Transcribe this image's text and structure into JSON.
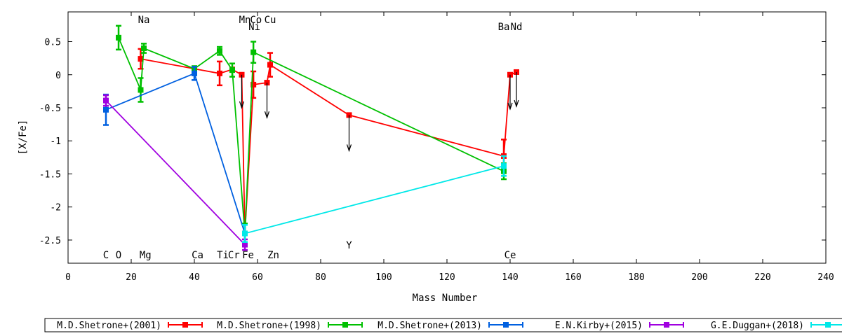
{
  "chart_data": {
    "type": "line",
    "xlabel": "Mass Number",
    "ylabel": "[X/Fe]",
    "xlim": [
      0,
      240
    ],
    "ylim": [
      -2.85,
      0.95
    ],
    "xticks": [
      0,
      20,
      40,
      60,
      80,
      100,
      120,
      140,
      160,
      180,
      200,
      220,
      240
    ],
    "yticks": [
      0.5,
      0,
      -0.5,
      -1,
      -1.5,
      -2,
      -2.5
    ],
    "ytick_labels": [
      "0.5",
      "0",
      "-0.5",
      "-1",
      "-1.5",
      "-2",
      "-2.5"
    ],
    "grid": false,
    "legend_position": "bottom",
    "element_labels": [
      {
        "text": "Na",
        "x": 24,
        "row": "top"
      },
      {
        "text": "Mn",
        "x": 56,
        "row": "top"
      },
      {
        "text": "Co",
        "x": 59.5,
        "row": "top"
      },
      {
        "text": "Cu",
        "x": 64,
        "row": "top"
      },
      {
        "text": "Ni",
        "x": 59,
        "row": "top2"
      },
      {
        "text": "Ba",
        "x": 138,
        "row": "top2"
      },
      {
        "text": "Nd",
        "x": 142,
        "row": "top2"
      },
      {
        "text": "Y",
        "x": 89,
        "row": "mid"
      },
      {
        "text": "C",
        "x": 12,
        "row": "bottom"
      },
      {
        "text": "O",
        "x": 16,
        "row": "bottom"
      },
      {
        "text": "Mg",
        "x": 24.5,
        "row": "bottom"
      },
      {
        "text": "Ca",
        "x": 41,
        "row": "bottom"
      },
      {
        "text": "Ti",
        "x": 49,
        "row": "bottom"
      },
      {
        "text": "Cr",
        "x": 52.5,
        "row": "bottom"
      },
      {
        "text": "Fe",
        "x": 57,
        "row": "bottom"
      },
      {
        "text": "Zn",
        "x": 65,
        "row": "bottom"
      },
      {
        "text": "Ce",
        "x": 140,
        "row": "bottom"
      }
    ],
    "series": [
      {
        "name": "M.D.Shetrone+(2001)",
        "color": "#ff0000",
        "points": [
          {
            "x": 23,
            "y": 0.24,
            "err": 0.15
          },
          {
            "x": 40,
            "y": 0.09,
            "err": 0.0
          },
          {
            "x": 48,
            "y": 0.02,
            "err": 0.18
          },
          {
            "x": 52,
            "y": 0.08,
            "err": 0.0
          },
          {
            "x": 55,
            "y": 0.0,
            "err": 0.0
          },
          {
            "x": 56,
            "y": -2.4,
            "err": 0.0
          },
          {
            "x": 58.7,
            "y": -0.15,
            "err": 0.2
          },
          {
            "x": 63,
            "y": -0.12,
            "err": 0.0
          },
          {
            "x": 64,
            "y": 0.15,
            "err": 0.18
          },
          {
            "x": 89,
            "y": -0.61,
            "err": 0.0
          },
          {
            "x": 138,
            "y": -1.23,
            "err": 0.25
          },
          {
            "x": 140,
            "y": 0.0,
            "err": 0.0
          },
          {
            "x": 142,
            "y": 0.04,
            "err": 0.0
          }
        ],
        "upper_limits": [
          {
            "x": 55,
            "y": 0.0,
            "to": -0.5
          },
          {
            "x": 63,
            "y": -0.12,
            "to": -0.65
          },
          {
            "x": 89,
            "y": -0.61,
            "to": -1.15
          },
          {
            "x": 140,
            "y": 0.0,
            "to": -0.52
          },
          {
            "x": 142,
            "y": 0.04,
            "to": -0.48
          }
        ]
      },
      {
        "name": "M.D.Shetrone+(1998)",
        "color": "#00c000",
        "points": [
          {
            "x": 16,
            "y": 0.56,
            "err": 0.18
          },
          {
            "x": 23,
            "y": -0.23,
            "err": 0.18
          },
          {
            "x": 24,
            "y": 0.4,
            "err": 0.07
          },
          {
            "x": 40,
            "y": 0.09,
            "err": 0.04
          },
          {
            "x": 48,
            "y": 0.36,
            "err": 0.06
          },
          {
            "x": 52,
            "y": 0.07,
            "err": 0.1
          },
          {
            "x": 56,
            "y": -2.4,
            "err": 0.15
          },
          {
            "x": 58.7,
            "y": 0.34,
            "err": 0.16
          },
          {
            "x": 138,
            "y": -1.46,
            "err": 0.12
          }
        ],
        "upper_limits": []
      },
      {
        "name": "M.D.Shetrone+(2013)",
        "color": "#0060e0",
        "points": [
          {
            "x": 12,
            "y": -0.53,
            "err": 0.23
          },
          {
            "x": 40,
            "y": 0.02,
            "err": 0.1
          },
          {
            "x": 56,
            "y": -2.4,
            "err": 0.13
          }
        ],
        "upper_limits": []
      },
      {
        "name": "E.N.Kirby+(2015)",
        "color": "#a000e0",
        "points": [
          {
            "x": 12,
            "y": -0.39,
            "err": 0.08
          },
          {
            "x": 56,
            "y": -2.57,
            "err": 0.08
          }
        ],
        "upper_limits": []
      },
      {
        "name": "G.E.Duggan+(2018)",
        "color": "#00e8e8",
        "points": [
          {
            "x": 56,
            "y": -2.4,
            "err": 0.13
          },
          {
            "x": 138,
            "y": -1.38,
            "err": 0.15
          }
        ],
        "upper_limits": []
      }
    ]
  }
}
